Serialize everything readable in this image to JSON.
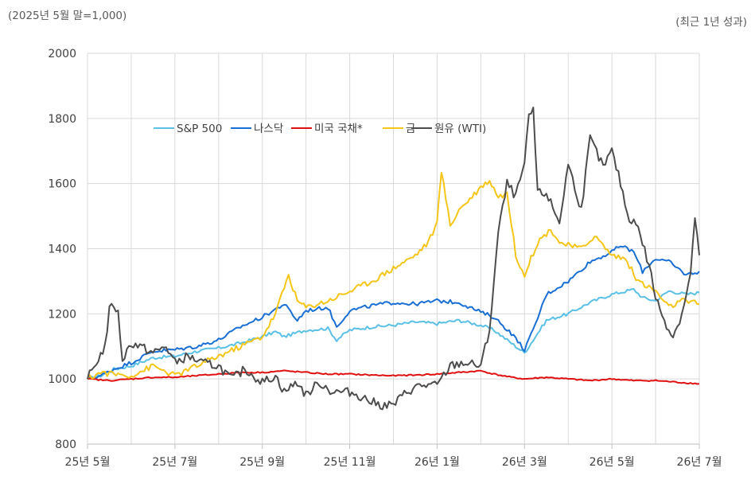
{
  "header": {
    "base_note": "(2025년 5월 말=1,000)",
    "period_note": "(최근 1년 성과)"
  },
  "chart_data": {
    "type": "line",
    "ylim": [
      800,
      2000
    ],
    "yticks": [
      800,
      1000,
      1200,
      1400,
      1600,
      1800,
      2000
    ],
    "xlim": [
      0,
      14
    ],
    "xticks": [
      {
        "x": 0,
        "label": "25년 5월"
      },
      {
        "x": 2,
        "label": "25년 7월"
      },
      {
        "x": 4,
        "label": "25년 9월"
      },
      {
        "x": 6,
        "label": "25년 11월"
      },
      {
        "x": 8,
        "label": "26년 1월"
      },
      {
        "x": 10,
        "label": "26년 3월"
      },
      {
        "x": 12,
        "label": "26년 5월"
      },
      {
        "x": 14,
        "label": "26년 7월"
      }
    ],
    "grid": true,
    "legend_position": "top-left",
    "series": [
      {
        "name": "S&P 500",
        "color": "#5bc0e6",
        "points": [
          [
            0,
            1000
          ],
          [
            0.3,
            1010
          ],
          [
            0.6,
            1030
          ],
          [
            1,
            1040
          ],
          [
            1.5,
            1065
          ],
          [
            2,
            1070
          ],
          [
            2.5,
            1085
          ],
          [
            3,
            1095
          ],
          [
            3.5,
            1110
          ],
          [
            4,
            1130
          ],
          [
            4.3,
            1145
          ],
          [
            4.5,
            1130
          ],
          [
            5,
            1150
          ],
          [
            5.5,
            1155
          ],
          [
            5.7,
            1120
          ],
          [
            6,
            1150
          ],
          [
            6.5,
            1160
          ],
          [
            7,
            1165
          ],
          [
            7.5,
            1175
          ],
          [
            8,
            1170
          ],
          [
            8.5,
            1180
          ],
          [
            9,
            1165
          ],
          [
            9.3,
            1150
          ],
          [
            9.7,
            1110
          ],
          [
            10,
            1080
          ],
          [
            10.2,
            1120
          ],
          [
            10.5,
            1180
          ],
          [
            11,
            1200
          ],
          [
            11.5,
            1235
          ],
          [
            12,
            1260
          ],
          [
            12.5,
            1275
          ],
          [
            12.7,
            1250
          ],
          [
            13,
            1240
          ],
          [
            13.3,
            1270
          ],
          [
            13.7,
            1260
          ],
          [
            14,
            1265
          ]
        ]
      },
      {
        "name": "나스닥",
        "color": "#1a6fd4",
        "points": [
          [
            0,
            1000
          ],
          [
            0.3,
            1010
          ],
          [
            0.6,
            1030
          ],
          [
            1,
            1050
          ],
          [
            1.5,
            1085
          ],
          [
            2,
            1090
          ],
          [
            2.5,
            1100
          ],
          [
            3,
            1120
          ],
          [
            3.5,
            1160
          ],
          [
            4,
            1190
          ],
          [
            4.5,
            1230
          ],
          [
            4.8,
            1180
          ],
          [
            5,
            1210
          ],
          [
            5.5,
            1220
          ],
          [
            5.7,
            1160
          ],
          [
            6,
            1210
          ],
          [
            6.5,
            1225
          ],
          [
            7,
            1235
          ],
          [
            7.5,
            1230
          ],
          [
            8,
            1240
          ],
          [
            8.5,
            1235
          ],
          [
            9,
            1205
          ],
          [
            9.3,
            1190
          ],
          [
            9.7,
            1140
          ],
          [
            10,
            1090
          ],
          [
            10.2,
            1150
          ],
          [
            10.5,
            1260
          ],
          [
            11,
            1300
          ],
          [
            11.5,
            1360
          ],
          [
            12,
            1390
          ],
          [
            12.2,
            1410
          ],
          [
            12.5,
            1390
          ],
          [
            12.7,
            1330
          ],
          [
            13,
            1370
          ],
          [
            13.3,
            1360
          ],
          [
            13.7,
            1320
          ],
          [
            14,
            1330
          ]
        ]
      },
      {
        "name": "미국 국채*",
        "color": "#e01010",
        "points": [
          [
            0,
            1000
          ],
          [
            0.5,
            995
          ],
          [
            1,
            1000
          ],
          [
            1.5,
            1005
          ],
          [
            2,
            1005
          ],
          [
            2.5,
            1010
          ],
          [
            3,
            1015
          ],
          [
            3.5,
            1020
          ],
          [
            4,
            1020
          ],
          [
            4.5,
            1025
          ],
          [
            5,
            1020
          ],
          [
            5.5,
            1015
          ],
          [
            6,
            1015
          ],
          [
            6.5,
            1012
          ],
          [
            7,
            1010
          ],
          [
            7.5,
            1012
          ],
          [
            8,
            1015
          ],
          [
            8.5,
            1020
          ],
          [
            9,
            1025
          ],
          [
            9.3,
            1015
          ],
          [
            9.7,
            1005
          ],
          [
            10,
            1000
          ],
          [
            10.5,
            1005
          ],
          [
            11,
            1000
          ],
          [
            11.5,
            995
          ],
          [
            12,
            1000
          ],
          [
            12.5,
            995
          ],
          [
            13,
            995
          ],
          [
            13.5,
            990
          ],
          [
            14,
            985
          ]
        ]
      },
      {
        "name": "금",
        "color": "#f5c518",
        "points": [
          [
            0,
            1000
          ],
          [
            0.3,
            1020
          ],
          [
            0.6,
            1015
          ],
          [
            1,
            1010
          ],
          [
            1.5,
            1040
          ],
          [
            2,
            1010
          ],
          [
            2.5,
            1040
          ],
          [
            3,
            1070
          ],
          [
            3.5,
            1100
          ],
          [
            4,
            1130
          ],
          [
            4.3,
            1200
          ],
          [
            4.6,
            1320
          ],
          [
            4.8,
            1240
          ],
          [
            5,
            1220
          ],
          [
            5.5,
            1240
          ],
          [
            6,
            1270
          ],
          [
            6.5,
            1300
          ],
          [
            7,
            1340
          ],
          [
            7.5,
            1380
          ],
          [
            7.8,
            1420
          ],
          [
            8,
            1480
          ],
          [
            8.1,
            1640
          ],
          [
            8.3,
            1470
          ],
          [
            8.5,
            1520
          ],
          [
            8.8,
            1560
          ],
          [
            9,
            1590
          ],
          [
            9.2,
            1610
          ],
          [
            9.4,
            1560
          ],
          [
            9.6,
            1570
          ],
          [
            9.8,
            1380
          ],
          [
            10,
            1320
          ],
          [
            10.3,
            1420
          ],
          [
            10.6,
            1460
          ],
          [
            10.8,
            1420
          ],
          [
            11,
            1410
          ],
          [
            11.3,
            1400
          ],
          [
            11.6,
            1440
          ],
          [
            12,
            1380
          ],
          [
            12.3,
            1370
          ],
          [
            12.6,
            1300
          ],
          [
            13,
            1270
          ],
          [
            13.3,
            1220
          ],
          [
            13.6,
            1240
          ],
          [
            14,
            1230
          ]
        ]
      },
      {
        "name": "원유 (WTI)",
        "color": "#4d4d4d",
        "points": [
          [
            0,
            1000
          ],
          [
            0.2,
            1050
          ],
          [
            0.4,
            1100
          ],
          [
            0.5,
            1210
          ],
          [
            0.6,
            1230
          ],
          [
            0.7,
            1200
          ],
          [
            0.8,
            1060
          ],
          [
            1,
            1110
          ],
          [
            1.2,
            1100
          ],
          [
            1.5,
            1080
          ],
          [
            1.8,
            1100
          ],
          [
            2,
            1050
          ],
          [
            2.3,
            1070
          ],
          [
            2.6,
            1050
          ],
          [
            3,
            1040
          ],
          [
            3.3,
            1000
          ],
          [
            3.6,
            1030
          ],
          [
            4,
            990
          ],
          [
            4.3,
            1010
          ],
          [
            4.5,
            960
          ],
          [
            4.8,
            990
          ],
          [
            5,
            950
          ],
          [
            5.3,
            990
          ],
          [
            5.6,
            960
          ],
          [
            6,
            960
          ],
          [
            6.2,
            950
          ],
          [
            6.5,
            930
          ],
          [
            6.7,
            920
          ],
          [
            7,
            920
          ],
          [
            7.3,
            960
          ],
          [
            7.6,
            980
          ],
          [
            8,
            980
          ],
          [
            8.3,
            1040
          ],
          [
            8.6,
            1050
          ],
          [
            9,
            1040
          ],
          [
            9.2,
            1150
          ],
          [
            9.4,
            1450
          ],
          [
            9.6,
            1600
          ],
          [
            9.8,
            1560
          ],
          [
            10,
            1660
          ],
          [
            10.1,
            1800
          ],
          [
            10.2,
            1830
          ],
          [
            10.3,
            1570
          ],
          [
            10.5,
            1570
          ],
          [
            10.8,
            1480
          ],
          [
            11,
            1660
          ],
          [
            11.3,
            1520
          ],
          [
            11.5,
            1740
          ],
          [
            11.8,
            1650
          ],
          [
            12,
            1700
          ],
          [
            12.2,
            1600
          ],
          [
            12.4,
            1480
          ],
          [
            12.5,
            1500
          ],
          [
            12.7,
            1420
          ],
          [
            12.9,
            1320
          ],
          [
            13,
            1250
          ],
          [
            13.2,
            1180
          ],
          [
            13.4,
            1130
          ],
          [
            13.6,
            1200
          ],
          [
            13.8,
            1320
          ],
          [
            13.9,
            1500
          ],
          [
            14,
            1380
          ]
        ]
      }
    ]
  }
}
